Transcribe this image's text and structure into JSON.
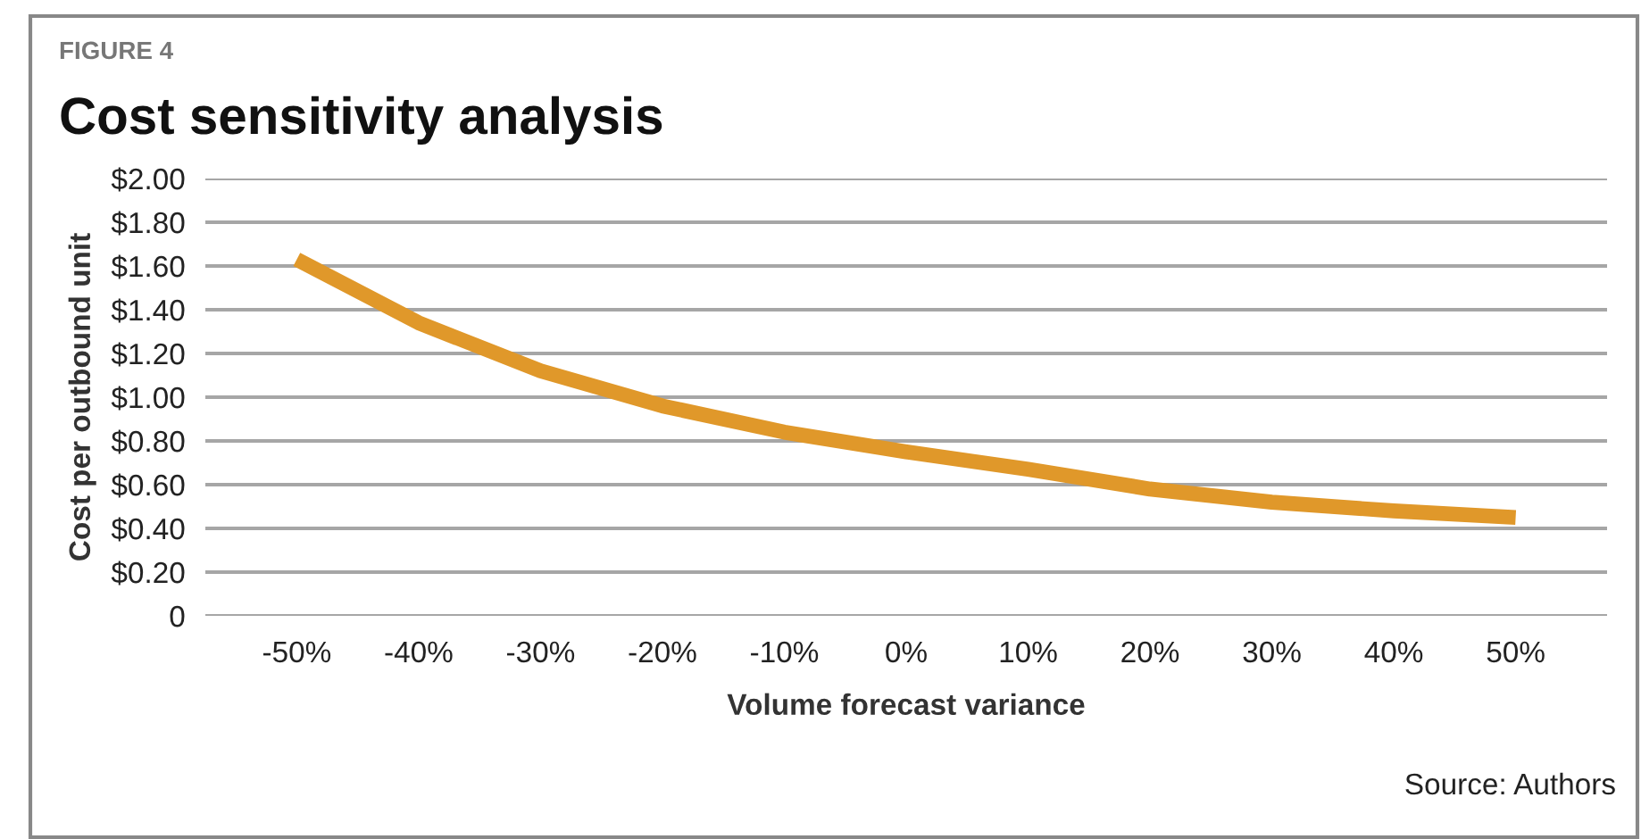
{
  "chart_data": {
    "type": "line",
    "title": "Cost sensitivity analysis",
    "xlabel": "Volume forecast variance",
    "ylabel": "Cost per outbound unit",
    "categories": [
      "-50%",
      "-40%",
      "-30%",
      "-20%",
      "-10%",
      "0%",
      "10%",
      "20%",
      "30%",
      "40%",
      "50%"
    ],
    "series": [
      {
        "color": "#e0982a",
        "values": [
          1.63,
          1.34,
          1.12,
          0.96,
          0.84,
          0.75,
          0.67,
          0.58,
          0.52,
          0.48,
          0.45
        ]
      }
    ],
    "ylim": [
      0,
      2
    ],
    "yticks": [
      {
        "value": 0,
        "label": "0"
      },
      {
        "value": 0.2,
        "label": "$0.20"
      },
      {
        "value": 0.4,
        "label": "$0.40"
      },
      {
        "value": 0.6,
        "label": "$0.60"
      },
      {
        "value": 0.8,
        "label": "$0.80"
      },
      {
        "value": 1.0,
        "label": "$1.00"
      },
      {
        "value": 1.2,
        "label": "$1.20"
      },
      {
        "value": 1.4,
        "label": "$1.40"
      },
      {
        "value": 1.6,
        "label": "$1.60"
      },
      {
        "value": 1.8,
        "label": "$1.80"
      },
      {
        "value": 2.0,
        "label": "$2.00"
      }
    ],
    "grid": "y",
    "legend": false,
    "marker": "none",
    "line_style": "solid",
    "annotations": [
      "FIGURE 4",
      "Source: Authors"
    ]
  }
}
